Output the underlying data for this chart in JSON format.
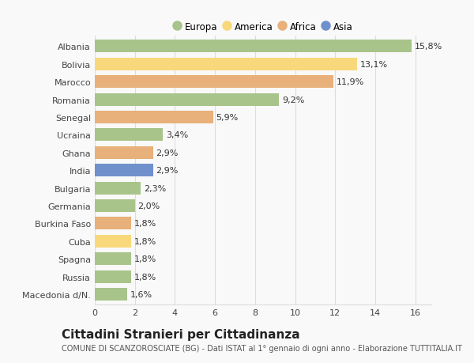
{
  "categories": [
    "Albania",
    "Bolivia",
    "Marocco",
    "Romania",
    "Senegal",
    "Ucraina",
    "Ghana",
    "India",
    "Bulgaria",
    "Germania",
    "Burkina Faso",
    "Cuba",
    "Spagna",
    "Russia",
    "Macedonia d/N."
  ],
  "values": [
    15.8,
    13.1,
    11.9,
    9.2,
    5.9,
    3.4,
    2.9,
    2.9,
    2.3,
    2.0,
    1.8,
    1.8,
    1.8,
    1.8,
    1.6
  ],
  "labels": [
    "15,8%",
    "13,1%",
    "11,9%",
    "9,2%",
    "5,9%",
    "3,4%",
    "2,9%",
    "2,9%",
    "2,3%",
    "2,0%",
    "1,8%",
    "1,8%",
    "1,8%",
    "1,8%",
    "1,6%"
  ],
  "continents": [
    "Europa",
    "America",
    "Africa",
    "Europa",
    "Africa",
    "Europa",
    "Africa",
    "Asia",
    "Europa",
    "Europa",
    "Africa",
    "America",
    "Europa",
    "Europa",
    "Europa"
  ],
  "colors": {
    "Europa": "#a8c48a",
    "America": "#f8d87a",
    "Africa": "#e8b07a",
    "Asia": "#7090cc"
  },
  "xlim": [
    0,
    16.8
  ],
  "xticks": [
    0,
    2,
    4,
    6,
    8,
    10,
    12,
    14,
    16
  ],
  "title": "Cittadini Stranieri per Cittadinanza",
  "subtitle": "COMUNE DI SCANZOROSCIATE (BG) - Dati ISTAT al 1° gennaio di ogni anno - Elaborazione TUTTITALIA.IT",
  "background_color": "#f9f9f9",
  "grid_color": "#dddddd",
  "bar_height": 0.72,
  "label_fontsize": 8,
  "tick_fontsize": 8,
  "title_fontsize": 11,
  "subtitle_fontsize": 7,
  "legend_order": [
    "Europa",
    "America",
    "Africa",
    "Asia"
  ]
}
